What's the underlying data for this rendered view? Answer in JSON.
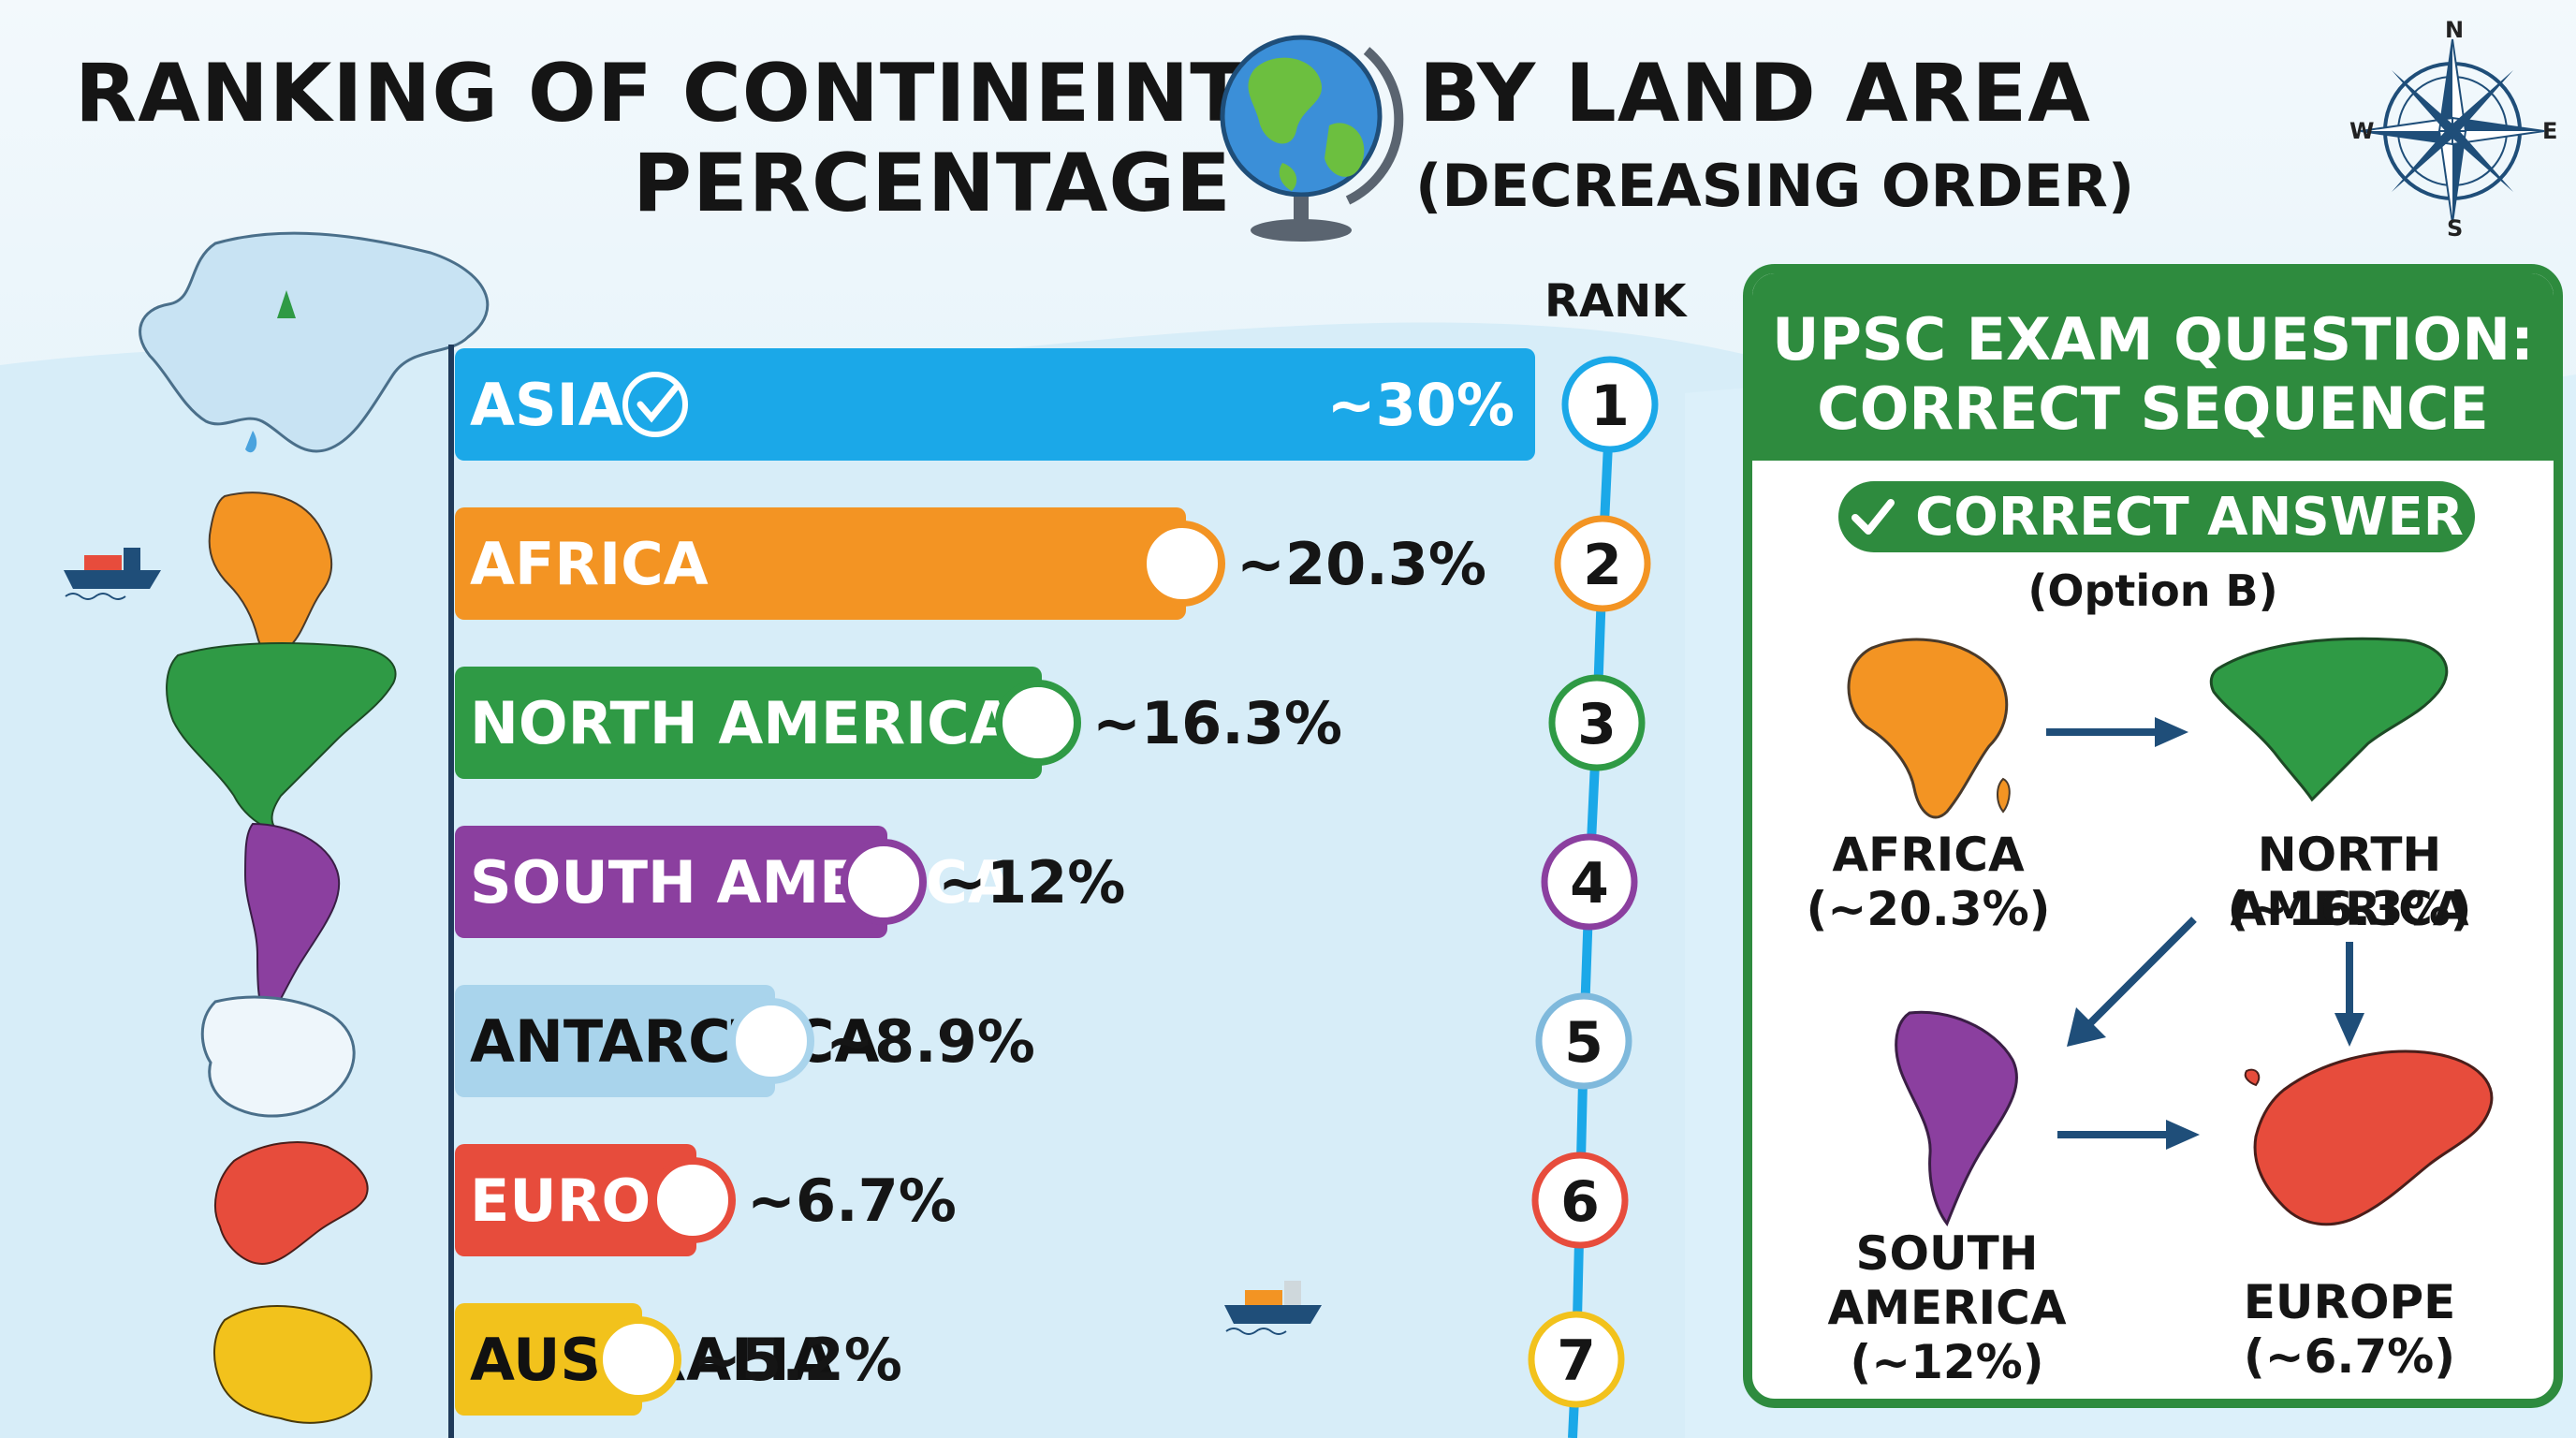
{
  "title": {
    "line1": "RANKING OF CONTINEINTS",
    "line2": "PERCENTAGE",
    "right1": "BY LAND AREA",
    "right2": "(DECREASING ORDER)"
  },
  "compass": {
    "n": "N",
    "s": "S",
    "e": "E",
    "w": "W"
  },
  "rank_header": "RANK",
  "chart_data": {
    "type": "bar",
    "orientation": "horizontal",
    "categories": [
      "ASIA",
      "AFRICA",
      "NORTH AMERICA",
      "SOUTH AMERICA",
      "ANTARCTICA",
      "EUROPE",
      "AUSTRALIA"
    ],
    "values": [
      30,
      20.3,
      16.3,
      12,
      8.9,
      6.7,
      5.2
    ],
    "value_labels": [
      "~30%",
      "~20.3%",
      "~16.3%",
      "~12%",
      "~8.9%",
      "~6.7%",
      "~5.2%"
    ],
    "ranks": [
      "1",
      "2",
      "3",
      "4",
      "5",
      "6",
      "7"
    ],
    "colors": [
      "#1ba8e8",
      "#f39423",
      "#2f9a45",
      "#8b3f9f",
      "#a9d4ec",
      "#e74c3c",
      "#f2c21c"
    ],
    "label_colors": [
      "#ffffff",
      "#ffffff",
      "#ffffff",
      "#ffffff",
      "#111111",
      "#ffffff",
      "#111111"
    ],
    "legend": "none",
    "grid": false
  },
  "panel": {
    "title_line1": "UPSC EXAM QUESTION:",
    "title_line2": "CORRECT SEQUENCE",
    "answer_label": "CORRECT ANSWER",
    "option": "(Option B)",
    "sequence": [
      {
        "name": "AFRICA",
        "value": "(~20.3%)",
        "color": "#f39423"
      },
      {
        "name": "NORTH AMERICA",
        "value": "(~16.3%)",
        "color": "#2f9a45"
      },
      {
        "name": "SOUTH AMERICA",
        "value": "(~12%)",
        "color": "#8b3f9f"
      },
      {
        "name": "EUROPE",
        "value": "(~6.7%)",
        "color": "#e74c3c"
      }
    ]
  },
  "colors": {
    "accent_green": "#2e8b3e",
    "axis_blue": "#1ba8e8",
    "navy": "#1f4e79"
  },
  "icons": [
    "globe-icon",
    "compass-icon",
    "check-circle-icon",
    "ship-icon",
    "tree-icon",
    "check-icon",
    "arrow-icon"
  ]
}
